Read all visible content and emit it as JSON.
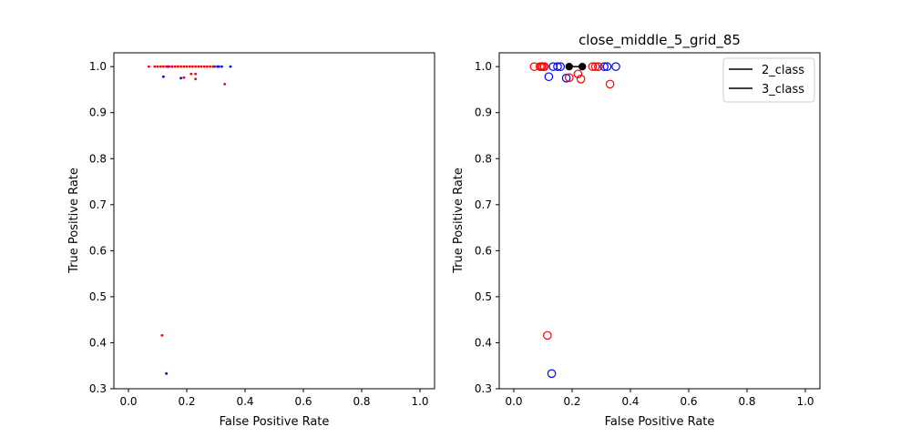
{
  "colors": {
    "series_2class": "#0000ff",
    "series_3class": "#ff0000",
    "highlight": "#000000",
    "axes": "#000000",
    "background": "#ffffff"
  },
  "chart_data": [
    {
      "type": "scatter",
      "title": "",
      "xlabel": "False Positive Rate",
      "ylabel": "True Positive Rate",
      "xlim": [
        -0.05,
        1.05
      ],
      "ylim": [
        0.3,
        1.03
      ],
      "xticks": [
        "0.0",
        "0.2",
        "0.4",
        "0.6",
        "0.8",
        "1.0"
      ],
      "yticks": [
        "0.3",
        "0.4",
        "0.5",
        "0.6",
        "0.7",
        "0.8",
        "0.9",
        "1.0"
      ],
      "grid": false,
      "legend": null,
      "marker": "dot",
      "series": [
        {
          "color": "blue",
          "points": [
            [
              0.12,
              0.978
            ],
            [
              0.13,
              0.333
            ],
            [
              0.135,
              1.0
            ],
            [
              0.15,
              1.0
            ],
            [
              0.18,
              0.975
            ],
            [
              0.295,
              1.0
            ],
            [
              0.305,
              1.0
            ],
            [
              0.31,
              1.0
            ],
            [
              0.32,
              1.0
            ],
            [
              0.35,
              1.0
            ]
          ]
        },
        {
          "color": "red",
          "points": [
            [
              0.07,
              1.0
            ],
            [
              0.09,
              1.0
            ],
            [
              0.1,
              1.0
            ],
            [
              0.11,
              1.0
            ],
            [
              0.12,
              1.0
            ],
            [
              0.13,
              1.0
            ],
            [
              0.14,
              1.0
            ],
            [
              0.15,
              1.0
            ],
            [
              0.16,
              1.0
            ],
            [
              0.17,
              1.0
            ],
            [
              0.18,
              1.0
            ],
            [
              0.19,
              1.0
            ],
            [
              0.2,
              1.0
            ],
            [
              0.21,
              1.0
            ],
            [
              0.22,
              1.0
            ],
            [
              0.23,
              1.0
            ],
            [
              0.24,
              1.0
            ],
            [
              0.25,
              1.0
            ],
            [
              0.26,
              1.0
            ],
            [
              0.27,
              1.0
            ],
            [
              0.28,
              1.0
            ],
            [
              0.29,
              1.0
            ],
            [
              0.115,
              0.416
            ],
            [
              0.19,
              0.976
            ],
            [
              0.215,
              0.984
            ],
            [
              0.23,
              0.984
            ],
            [
              0.23,
              0.973
            ],
            [
              0.33,
              0.962
            ]
          ]
        }
      ]
    },
    {
      "type": "scatter",
      "title": "close_middle_5_grid_85",
      "xlabel": "False Positive Rate",
      "ylabel": "True Positive Rate",
      "xlim": [
        -0.05,
        1.05
      ],
      "ylim": [
        0.3,
        1.03
      ],
      "xticks": [
        "0.0",
        "0.2",
        "0.4",
        "0.6",
        "0.8",
        "1.0"
      ],
      "yticks": [
        "0.3",
        "0.4",
        "0.5",
        "0.6",
        "0.7",
        "0.8",
        "0.9",
        "1.0"
      ],
      "grid": false,
      "legend": {
        "placement": "top-right",
        "entries": [
          "2_class",
          "3_class"
        ]
      },
      "marker": "open-circle",
      "series": [
        {
          "color": "blue",
          "points": [
            [
              0.12,
              0.978
            ],
            [
              0.13,
              0.333
            ],
            [
              0.135,
              1.0
            ],
            [
              0.15,
              1.0
            ],
            [
              0.16,
              1.0
            ],
            [
              0.18,
              0.975
            ],
            [
              0.31,
              1.0
            ],
            [
              0.32,
              1.0
            ],
            [
              0.35,
              1.0
            ]
          ]
        },
        {
          "color": "red",
          "points": [
            [
              0.07,
              1.0
            ],
            [
              0.09,
              1.0
            ],
            [
              0.095,
              1.0
            ],
            [
              0.1,
              1.0
            ],
            [
              0.105,
              1.0
            ],
            [
              0.115,
              0.416
            ],
            [
              0.19,
              0.976
            ],
            [
              0.22,
              0.984
            ],
            [
              0.23,
              0.973
            ],
            [
              0.27,
              1.0
            ],
            [
              0.28,
              1.0
            ],
            [
              0.29,
              1.0
            ],
            [
              0.33,
              0.962
            ]
          ]
        }
      ],
      "highlight": {
        "color": "black",
        "points": [
          [
            0.19,
            1.0
          ],
          [
            0.235,
            1.0
          ]
        ]
      }
    }
  ]
}
